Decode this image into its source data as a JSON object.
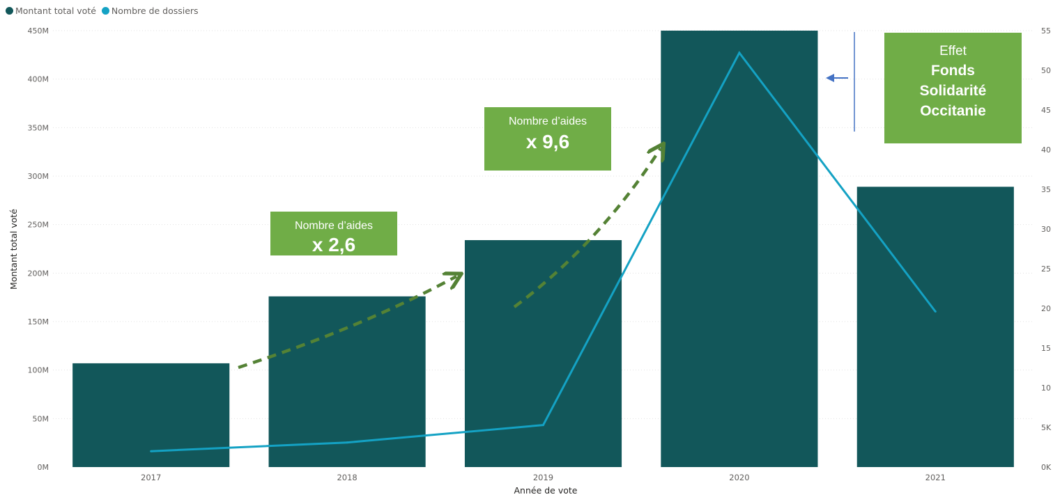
{
  "legend": [
    {
      "label": "Montant total voté",
      "color": "#12575a"
    },
    {
      "label": "Nombre de dossiers",
      "color": "#14a2c4"
    }
  ],
  "annotations": {
    "box1": {
      "line1": "Nombre d’aides",
      "line2": "x 2,6"
    },
    "box2": {
      "line1": "Nombre d’aides",
      "line2": "x 9,6"
    },
    "box3": {
      "line1": "Effet",
      "line2": "Fonds",
      "line3": "Solidarité",
      "line4": "Occitanie"
    }
  },
  "chart_data": {
    "type": "bar",
    "categories": [
      "2017",
      "2018",
      "2019",
      "2020",
      "2021"
    ],
    "xlabel": "Année de vote",
    "ylabel": "Montant total voté",
    "ylim": [
      0,
      450
    ],
    "y_ticks": [
      "0M",
      "50M",
      "100M",
      "150M",
      "200M",
      "250M",
      "300M",
      "350M",
      "400M",
      "450M"
    ],
    "y2lim": [
      0,
      55
    ],
    "y2_ticks": [
      "0K",
      "5K",
      "10",
      "15",
      "20",
      "25",
      "30",
      "35",
      "40",
      "45",
      "50",
      "55"
    ],
    "series": [
      {
        "name": "Montant total voté",
        "type": "bar",
        "axis": "left",
        "color": "#12575a",
        "values": [
          107,
          176,
          234,
          450,
          289
        ]
      },
      {
        "name": "Nombre de dossiers",
        "type": "line",
        "axis": "right",
        "color": "#14a2c4",
        "values": [
          2.0,
          3.1,
          5.3,
          52.2,
          19.6
        ]
      }
    ],
    "grid": true,
    "legend_position": "top-left"
  }
}
